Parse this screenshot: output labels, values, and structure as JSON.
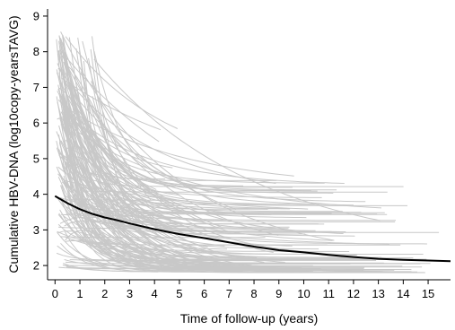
{
  "chart_data": {
    "type": "line",
    "title": "",
    "xlabel": "Time of follow-up (years)",
    "ylabel": "Cumulative HBV-DNA (log10copy-yearsTAVG)",
    "xlim": [
      -0.3,
      15.9
    ],
    "ylim": [
      1.6,
      9.2
    ],
    "xticks": [
      0,
      1,
      2,
      3,
      4,
      5,
      6,
      7,
      8,
      9,
      10,
      11,
      12,
      13,
      14,
      15
    ],
    "yticks": [
      2,
      3,
      4,
      5,
      6,
      7,
      8,
      9
    ],
    "grid": false,
    "legend": "none",
    "individual_trajectories": {
      "color": "#c8c8c8",
      "count": 180,
      "start_range": [
        1.8,
        8.6
      ],
      "end_range": [
        1.8,
        5.1
      ],
      "description_of_rendering": "many gray subject-level lines decaying from high initial values"
    },
    "series": [
      {
        "color": "#000000",
        "x": [
          0.0,
          0.5,
          1.0,
          1.5,
          2.0,
          2.5,
          3.0,
          4.0,
          5.0,
          6.0,
          7.0,
          8.0,
          9.0,
          10.0,
          11.0,
          12.0,
          13.0,
          14.0,
          15.0,
          15.9
        ],
        "y": [
          3.95,
          3.75,
          3.58,
          3.45,
          3.35,
          3.27,
          3.18,
          3.02,
          2.88,
          2.77,
          2.65,
          2.53,
          2.43,
          2.37,
          2.3,
          2.24,
          2.19,
          2.16,
          2.14,
          2.12
        ]
      }
    ]
  }
}
